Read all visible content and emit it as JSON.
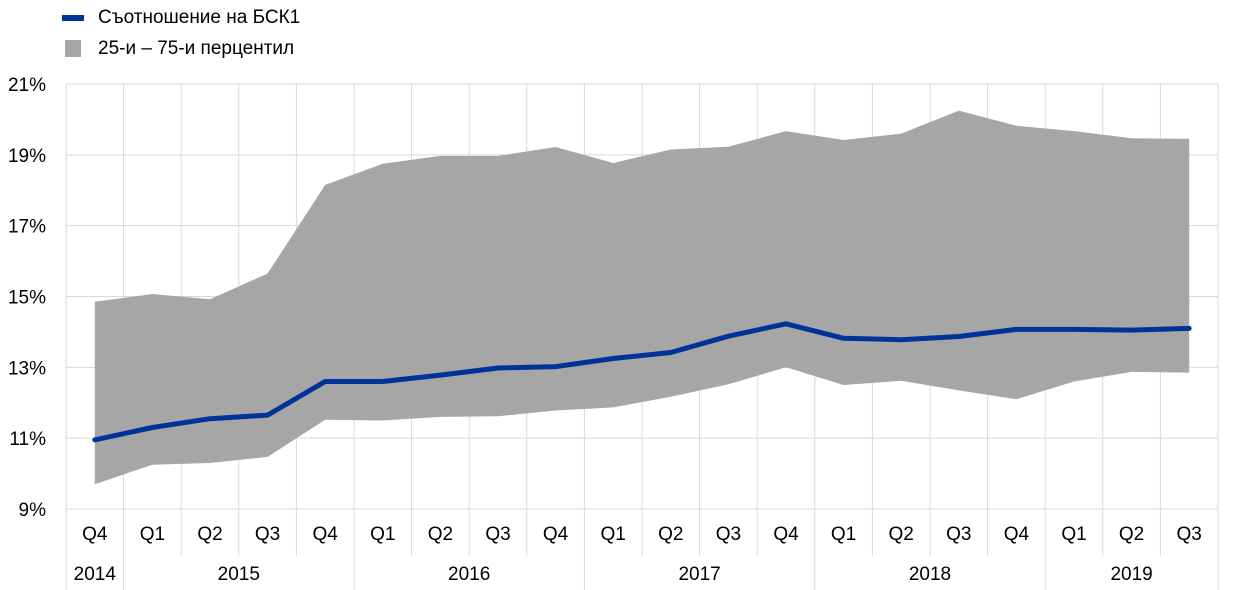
{
  "chart_data": {
    "type": "area",
    "legend": [
      {
        "label": "Съотношение на БСК1",
        "color": "#003399",
        "kind": "line"
      },
      {
        "label": "25-и – 75-и перцентил",
        "color": "#a6a6a6",
        "kind": "area"
      }
    ],
    "quarters": [
      "Q4",
      "Q1",
      "Q2",
      "Q3",
      "Q4",
      "Q1",
      "Q2",
      "Q3",
      "Q4",
      "Q1",
      "Q2",
      "Q3",
      "Q4",
      "Q1",
      "Q2",
      "Q3",
      "Q4",
      "Q1",
      "Q2",
      "Q3"
    ],
    "years": [
      {
        "label": "2014",
        "span": 1
      },
      {
        "label": "2015",
        "span": 4
      },
      {
        "label": "2016",
        "span": 4
      },
      {
        "label": "2017",
        "span": 4
      },
      {
        "label": "2018",
        "span": 4
      },
      {
        "label": "2019",
        "span": 3
      }
    ],
    "series": [
      {
        "name": "Съотношение на БСК1",
        "values": [
          10.95,
          11.3,
          11.55,
          11.65,
          12.6,
          12.6,
          12.78,
          12.98,
          13.02,
          13.25,
          13.42,
          13.88,
          14.23,
          13.82,
          13.78,
          13.87,
          14.07,
          14.07,
          14.05,
          14.1
        ]
      },
      {
        "name": "25-и – 75-и перцентил",
        "upper": [
          14.85,
          15.07,
          14.92,
          15.65,
          18.15,
          18.75,
          18.97,
          18.97,
          19.22,
          18.77,
          19.15,
          19.23,
          19.67,
          19.42,
          19.6,
          20.25,
          19.82,
          19.67,
          19.47,
          19.45
        ],
        "lower": [
          9.7,
          10.25,
          10.3,
          10.47,
          11.52,
          11.5,
          11.6,
          11.62,
          11.78,
          11.87,
          12.17,
          12.52,
          13.0,
          12.5,
          12.62,
          12.35,
          12.1,
          12.6,
          12.87,
          12.85
        ]
      }
    ],
    "y_ticks": [
      "9%",
      "11%",
      "13%",
      "15%",
      "17%",
      "19%",
      "21%"
    ],
    "ylim": [
      9,
      21
    ],
    "grid": true,
    "legend_position": "top-left"
  }
}
